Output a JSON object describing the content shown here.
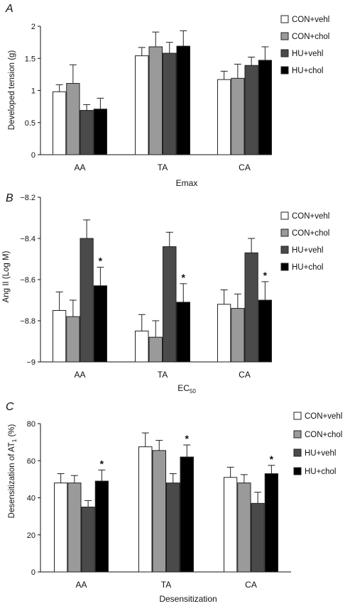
{
  "series_names": [
    "CON+vehl",
    "CON+chol",
    "HU+vehl",
    "HU+chol"
  ],
  "colors": {
    "series": [
      "#ffffff",
      "#9a9a9a",
      "#4a4a4a",
      "#000000"
    ],
    "stroke": "#222222"
  },
  "chart_data": [
    {
      "panel": "A",
      "type": "bar",
      "xlabel": "Emax",
      "ylabel": "Developed tension (g)",
      "categories": [
        "AA",
        "TA",
        "CA"
      ],
      "ylim": [
        0,
        2
      ],
      "yticks": [
        "0",
        "0.5",
        "1",
        "1.5",
        "2"
      ],
      "tick_values": [
        0,
        0.5,
        1,
        1.5,
        2
      ],
      "inverted": false,
      "series": [
        {
          "name": "CON+vehl",
          "values": [
            0.98,
            1.54,
            1.17
          ],
          "errors": [
            0.11,
            0.13,
            0.13
          ]
        },
        {
          "name": "CON+chol",
          "values": [
            1.11,
            1.68,
            1.19
          ],
          "errors": [
            0.29,
            0.23,
            0.22
          ]
        },
        {
          "name": "HU+vehl",
          "values": [
            0.69,
            1.58,
            1.39
          ],
          "errors": [
            0.09,
            0.17,
            0.13
          ]
        },
        {
          "name": "HU+chol",
          "values": [
            0.71,
            1.69,
            1.47
          ],
          "errors": [
            0.17,
            0.24,
            0.21
          ]
        }
      ],
      "stars": []
    },
    {
      "panel": "B",
      "type": "bar",
      "xlabel": "EC",
      "xlabel_sub": "50",
      "ylabel": "Ang II (Log M)",
      "categories": [
        "AA",
        "TA",
        "CA"
      ],
      "ylim": [
        -9,
        -8.2
      ],
      "yticks": [
        "−8.2",
        "−8.4",
        "−8.6",
        "−8.8",
        "−9"
      ],
      "tick_values": [
        -8.2,
        -8.4,
        -8.6,
        -8.8,
        -9
      ],
      "inverted": true,
      "series": [
        {
          "name": "CON+vehl",
          "values": [
            -8.75,
            -8.85,
            -8.72
          ],
          "errors": [
            0.09,
            0.08,
            0.07
          ]
        },
        {
          "name": "CON+chol",
          "values": [
            -8.78,
            -8.88,
            -8.74
          ],
          "errors": [
            0.08,
            0.08,
            0.07
          ]
        },
        {
          "name": "HU+vehl",
          "values": [
            -8.4,
            -8.44,
            -8.47
          ],
          "errors": [
            0.09,
            0.07,
            0.07
          ]
        },
        {
          "name": "HU+chol",
          "values": [
            -8.63,
            -8.71,
            -8.7
          ],
          "errors": [
            0.09,
            0.09,
            0.09
          ]
        }
      ],
      "stars": [
        {
          "series": 3,
          "category": 0
        },
        {
          "series": 3,
          "category": 1
        },
        {
          "series": 3,
          "category": 2
        }
      ]
    },
    {
      "panel": "C",
      "type": "bar",
      "xlabel": "Desensitization",
      "ylabel": "Desensitization of AT",
      "ylabel_sub": "1",
      "ylabel_tail": " (%)",
      "categories": [
        "AA",
        "TA",
        "CA"
      ],
      "ylim": [
        0,
        80
      ],
      "yticks": [
        "0",
        "20",
        "40",
        "60",
        "80"
      ],
      "tick_values": [
        0,
        20,
        40,
        60,
        80
      ],
      "inverted": false,
      "series": [
        {
          "name": "CON+vehl",
          "values": [
            48,
            67.5,
            51
          ],
          "errors": [
            5,
            7.5,
            5.5
          ]
        },
        {
          "name": "CON+chol",
          "values": [
            48,
            65.5,
            48
          ],
          "errors": [
            4,
            5.5,
            4.5
          ]
        },
        {
          "name": "HU+vehl",
          "values": [
            35,
            48,
            37
          ],
          "errors": [
            3.5,
            5,
            6
          ]
        },
        {
          "name": "HU+chol",
          "values": [
            49,
            62,
            53
          ],
          "errors": [
            6,
            6.5,
            4.5
          ]
        }
      ],
      "stars": [
        {
          "series": 3,
          "category": 0
        },
        {
          "series": 3,
          "category": 1
        },
        {
          "series": 3,
          "category": 2
        }
      ]
    }
  ]
}
